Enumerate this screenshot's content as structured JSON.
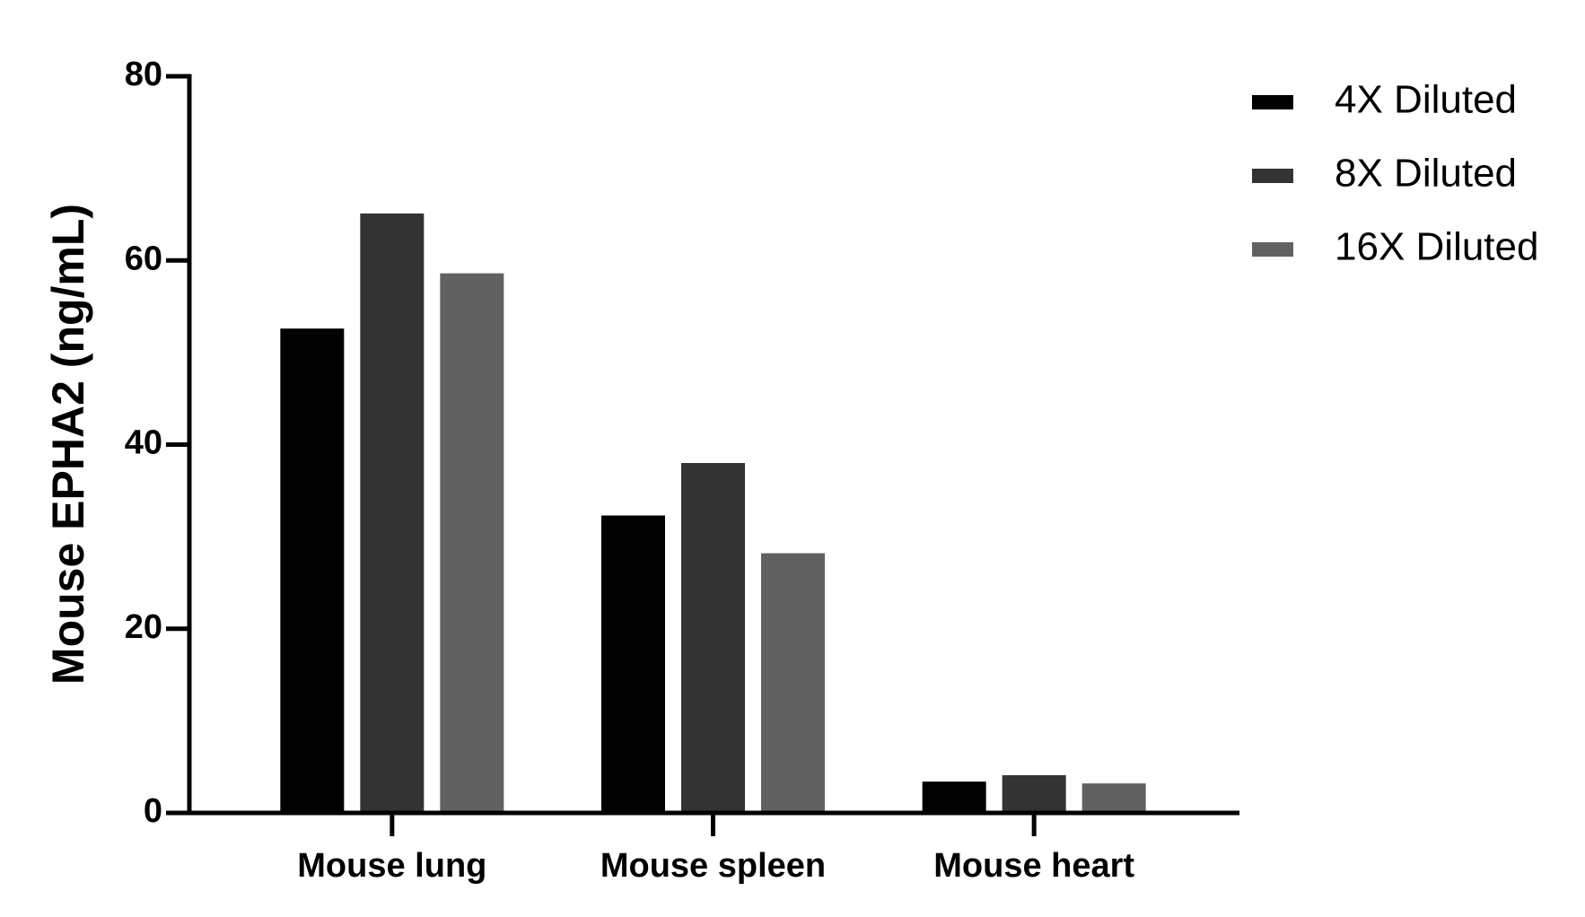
{
  "chart_data": {
    "type": "bar",
    "y_label": "Mouse EPHA2 (ng/mL)",
    "categories": [
      "Mouse lung",
      "Mouse spleen",
      "Mouse heart"
    ],
    "series": [
      {
        "name": "4X Diluted",
        "color": "#000000",
        "values": [
          52.6,
          32.3,
          3.4
        ]
      },
      {
        "name": "8X Diluted",
        "color": "#333333",
        "values": [
          65.1,
          38.0,
          4.1
        ]
      },
      {
        "name": "16X Diluted",
        "color": "#616161",
        "values": [
          58.6,
          28.2,
          3.2
        ]
      }
    ],
    "ylim": [
      0,
      80
    ],
    "yticks": [
      0,
      20,
      40,
      60,
      80
    ],
    "legend": "right"
  }
}
